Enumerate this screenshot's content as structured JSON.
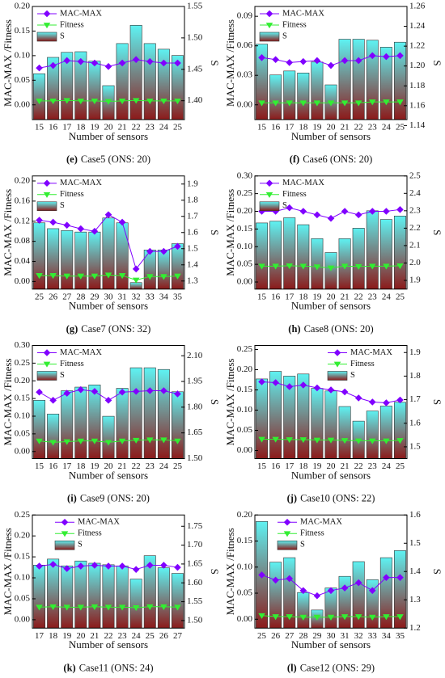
{
  "chart_data": [
    {
      "type": "combo",
      "panel": "(e)",
      "title": "Case5 (ONS: 20)",
      "xlabel": "Number of sensors",
      "ylabel": "MAC-MAX /Fitness",
      "y2label": "S",
      "legend": "upper left",
      "categories": [
        15,
        16,
        17,
        18,
        19,
        20,
        21,
        22,
        23,
        24,
        25
      ],
      "series": [
        {
          "name": "S",
          "type": "bar",
          "axis": "y2",
          "gradient": [
            "#5ef2f2",
            "#8c1a1a"
          ],
          "values": [
            1.443,
            1.469,
            1.477,
            1.478,
            1.463,
            1.424,
            1.491,
            1.52,
            1.491,
            1.482,
            1.472
          ]
        },
        {
          "name": "MAC-MAX",
          "type": "line",
          "color": "#8000ff",
          "marker": "diamond",
          "values": [
            0.075,
            0.08,
            0.09,
            0.088,
            0.085,
            0.078,
            0.085,
            0.092,
            0.088,
            0.085,
            0.085
          ]
        },
        {
          "name": "Fitness",
          "type": "line",
          "color": "#33ee33",
          "marker": "triangle-down",
          "values": [
            0.008,
            0.008,
            0.009,
            0.008,
            0.008,
            0.007,
            0.008,
            0.009,
            0.008,
            0.008,
            0.008
          ]
        }
      ],
      "ylim": [
        -0.03,
        0.2
      ],
      "yticks": [
        {
          "value": 0,
          "label": "0.00"
        },
        0.05,
        {
          "value": 0.1,
          "label": "0.10"
        },
        0.15,
        {
          "value": 0.2,
          "label": "0.20"
        }
      ],
      "y2lim": [
        1.37,
        1.55
      ],
      "y2ticks": [
        {
          "value": 1.4,
          "label": "1.40"
        },
        1.45,
        {
          "value": 1.5,
          "label": "1.50"
        },
        1.55
      ]
    },
    {
      "type": "combo",
      "panel": "(f)",
      "title": "Case6 (ONS: 20)",
      "xlabel": "Number of sensors",
      "ylabel": "MAC-MAX /Fitness",
      "y2label": "S",
      "legend": "upper left",
      "categories": [
        15,
        16,
        17,
        18,
        19,
        20,
        21,
        22,
        23,
        24,
        25
      ],
      "series": [
        {
          "name": "S",
          "type": "bar",
          "axis": "y2",
          "gradient": [
            "#5ef2f2",
            "#8c1a1a"
          ],
          "values": [
            1.222,
            1.191,
            1.195,
            1.193,
            1.204,
            1.181,
            1.227,
            1.227,
            1.226,
            1.219,
            1.224
          ]
        },
        {
          "name": "MAC-MAX",
          "type": "line",
          "color": "#8000ff",
          "marker": "diamond",
          "values": [
            0.048,
            0.046,
            0.043,
            0.044,
            0.045,
            0.04,
            0.045,
            0.045,
            0.05,
            0.049,
            0.05
          ]
        },
        {
          "name": "Fitness",
          "type": "line",
          "color": "#33ee33",
          "marker": "triangle-down",
          "values": [
            0.002,
            0.002,
            0.002,
            0.002,
            0.002,
            0.002,
            0.002,
            0.002,
            0.003,
            0.003,
            0.003
          ]
        }
      ],
      "ylim": [
        -0.015,
        0.1
      ],
      "yticks": [
        {
          "value": 0,
          "label": "0.00"
        },
        0.03,
        0.06,
        0.09
      ],
      "y2lim": [
        1.146,
        1.26
      ],
      "y2ticks": [
        1.14,
        1.16,
        1.18,
        {
          "value": 1.2,
          "label": "1.20"
        },
        1.22,
        1.24,
        1.26
      ]
    },
    {
      "type": "combo",
      "panel": "(g)",
      "title": "Case7 (ONS: 32)",
      "xlabel": "Number of sensors",
      "ylabel": "MAC-MAX /Fitness",
      "y2label": "S",
      "legend": "upper left",
      "categories": [
        25,
        26,
        27,
        28,
        29,
        30,
        31,
        32,
        33,
        34,
        35
      ],
      "series": [
        {
          "name": "S",
          "type": "bar",
          "axis": "y2",
          "gradient": [
            "#5ef2f2",
            "#8c1a1a"
          ],
          "values": [
            1.66,
            1.624,
            1.612,
            1.603,
            1.603,
            1.69,
            1.66,
            1.29,
            1.492,
            1.492,
            1.531
          ]
        },
        {
          "name": "MAC-MAX",
          "type": "line",
          "color": "#8000ff",
          "marker": "diamond",
          "values": [
            0.122,
            0.118,
            0.112,
            0.105,
            0.1,
            0.133,
            0.118,
            0.025,
            0.06,
            0.06,
            0.07
          ]
        },
        {
          "name": "Fitness",
          "type": "line",
          "color": "#33ee33",
          "marker": "triangle-down",
          "values": [
            0.012,
            0.012,
            0.011,
            0.011,
            0.011,
            0.013,
            0.012,
            0.003,
            0.01,
            0.01,
            0.011
          ]
        }
      ],
      "ylim": [
        -0.015,
        0.21
      ],
      "yticks": [
        {
          "value": 0,
          "label": "0.00"
        },
        0.04,
        0.08,
        0.12,
        0.16,
        {
          "value": 0.2,
          "label": "0.20"
        }
      ],
      "y2lim": [
        1.25,
        1.95
      ],
      "y2ticks": [
        1.3,
        1.4,
        1.5,
        1.6,
        1.7,
        1.8,
        1.9
      ]
    },
    {
      "type": "combo",
      "panel": "(h)",
      "title": "Case8 (ONS: 20)",
      "xlabel": "Number of sensors",
      "ylabel": "MAC-MAX /Fitness",
      "y2label": "S",
      "legend": "upper left",
      "categories": [
        15,
        16,
        17,
        18,
        19,
        20,
        21,
        22,
        23,
        24,
        25
      ],
      "series": [
        {
          "name": "S",
          "type": "bar",
          "axis": "y2",
          "gradient": [
            "#5ef2f2",
            "#8c1a1a"
          ],
          "values": [
            2.23,
            2.24,
            2.26,
            2.22,
            2.14,
            2.06,
            2.14,
            2.2,
            2.3,
            2.25,
            2.27
          ]
        },
        {
          "name": "MAC-MAX",
          "type": "line",
          "color": "#8000ff",
          "marker": "diamond",
          "values": [
            0.2,
            0.2,
            0.21,
            0.2,
            0.19,
            0.18,
            0.2,
            0.19,
            0.2,
            0.2,
            0.205
          ]
        },
        {
          "name": "Fitness",
          "type": "line",
          "color": "#33ee33",
          "marker": "triangle-down",
          "values": [
            0.045,
            0.045,
            0.046,
            0.045,
            0.043,
            0.04,
            0.045,
            0.044,
            0.045,
            0.045,
            0.046
          ]
        }
      ],
      "ylim": [
        -0.02,
        0.3
      ],
      "yticks": [
        {
          "value": 0,
          "label": "0.00"
        },
        0.05,
        {
          "value": 0.1,
          "label": "0.10"
        },
        0.15,
        {
          "value": 0.2,
          "label": "0.20"
        },
        0.25,
        {
          "value": 0.3,
          "label": "0.30"
        }
      ],
      "y2lim": [
        1.85,
        2.5
      ],
      "y2ticks": [
        1.9,
        {
          "value": 2,
          "label": "2.0"
        },
        2.1,
        2.2,
        2.3,
        2.4,
        2.5
      ]
    },
    {
      "type": "combo",
      "panel": "(i)",
      "title": "Case9 (ONS: 20)",
      "xlabel": "Number of sensors",
      "ylabel": "MAC-MAX /Fitness",
      "y2label": "S",
      "legend": "upper left",
      "categories": [
        15,
        16,
        17,
        18,
        19,
        20,
        21,
        22,
        23,
        24,
        25
      ],
      "series": [
        {
          "name": "S",
          "type": "bar",
          "axis": "y2",
          "gradient": [
            "#5ef2f2",
            "#8c1a1a"
          ],
          "values": [
            1.84,
            1.76,
            1.896,
            1.917,
            1.93,
            1.747,
            1.91,
            2.03,
            2.03,
            2.02,
            1.89
          ]
        },
        {
          "name": "MAC-MAX",
          "type": "line",
          "color": "#8000ff",
          "marker": "diamond",
          "values": [
            0.168,
            0.145,
            0.165,
            0.175,
            0.17,
            0.145,
            0.168,
            0.17,
            0.172,
            0.172,
            0.163
          ]
        },
        {
          "name": "Fitness",
          "type": "line",
          "color": "#33ee33",
          "marker": "triangle-down",
          "values": [
            0.03,
            0.026,
            0.028,
            0.03,
            0.03,
            0.026,
            0.03,
            0.032,
            0.033,
            0.033,
            0.03
          ]
        }
      ],
      "ylim": [
        -0.02,
        0.3
      ],
      "yticks": [
        {
          "value": 0,
          "label": "0.00"
        },
        0.05,
        {
          "value": 0.1,
          "label": "0.10"
        },
        0.15,
        {
          "value": 0.2,
          "label": "0.20"
        },
        0.25,
        {
          "value": 0.3,
          "label": "0.30"
        }
      ],
      "y2lim": [
        1.5,
        2.16
      ],
      "y2ticks": [
        {
          "value": 1.5,
          "label": "1.50"
        },
        1.65,
        {
          "value": 1.8,
          "label": "1.80"
        },
        1.95,
        {
          "value": 2.1,
          "label": "2.10"
        }
      ]
    },
    {
      "type": "combo",
      "panel": "(j)",
      "title": "Case10 (ONS: 22)",
      "xlabel": "Number of sensors",
      "ylabel": "MAC-MAX /Fitness",
      "y2label": "S",
      "legend": "upper right",
      "categories": [
        15,
        16,
        17,
        18,
        19,
        20,
        21,
        22,
        23,
        24,
        25
      ],
      "series": [
        {
          "name": "S",
          "type": "bar",
          "axis": "y2",
          "gradient": [
            "#5ef2f2",
            "#8c1a1a"
          ],
          "values": [
            1.788,
            1.82,
            1.8,
            1.809,
            1.748,
            1.737,
            1.671,
            1.609,
            1.652,
            1.673,
            1.689
          ]
        },
        {
          "name": "MAC-MAX",
          "type": "line",
          "color": "#8000ff",
          "marker": "diamond",
          "values": [
            0.17,
            0.168,
            0.158,
            0.162,
            0.155,
            0.15,
            0.145,
            0.13,
            0.12,
            0.118,
            0.125
          ]
        },
        {
          "name": "Fitness",
          "type": "line",
          "color": "#33ee33",
          "marker": "triangle-down",
          "values": [
            0.028,
            0.028,
            0.027,
            0.027,
            0.026,
            0.026,
            0.025,
            0.024,
            0.024,
            0.024,
            0.025
          ]
        }
      ],
      "ylim": [
        -0.02,
        0.26
      ],
      "yticks": [
        {
          "value": 0,
          "label": "0.00"
        },
        0.05,
        {
          "value": 0.1,
          "label": "0.10"
        },
        0.15,
        {
          "value": 0.2,
          "label": "0.20"
        },
        0.25
      ],
      "y2lim": [
        1.45,
        1.93
      ],
      "y2ticks": [
        1.5,
        1.6,
        1.7,
        1.8,
        1.9
      ]
    },
    {
      "type": "combo",
      "panel": "(k)",
      "title": "Case11 (ONS: 24)",
      "xlabel": "Number of sensors",
      "ylabel": "MAC-MAX /Fitness",
      "y2label": "S",
      "legend": "upper center",
      "categories": [
        17,
        18,
        19,
        20,
        21,
        22,
        23,
        24,
        25,
        26,
        27
      ],
      "series": [
        {
          "name": "S",
          "type": "bar",
          "axis": "y2",
          "gradient": [
            "#5ef2f2",
            "#8c1a1a"
          ],
          "values": [
            1.647,
            1.663,
            1.645,
            1.658,
            1.652,
            1.648,
            1.645,
            1.61,
            1.672,
            1.64,
            1.625
          ]
        },
        {
          "name": "MAC-MAX",
          "type": "line",
          "color": "#8000ff",
          "marker": "diamond",
          "values": [
            0.128,
            0.132,
            0.122,
            0.128,
            0.13,
            0.128,
            0.128,
            0.12,
            0.13,
            0.13,
            0.125
          ]
        },
        {
          "name": "Fitness",
          "type": "line",
          "color": "#33ee33",
          "marker": "triangle-down",
          "values": [
            0.03,
            0.031,
            0.03,
            0.03,
            0.031,
            0.03,
            0.03,
            0.029,
            0.031,
            0.031,
            0.03
          ]
        }
      ],
      "ylim": [
        -0.02,
        0.25
      ],
      "yticks": [
        {
          "value": 0,
          "label": "0.00"
        },
        0.05,
        {
          "value": 0.1,
          "label": "0.10"
        },
        0.15,
        {
          "value": 0.2,
          "label": "0.20"
        },
        0.25
      ],
      "y2lim": [
        1.48,
        1.78
      ],
      "y2ticks": [
        {
          "value": 1.5,
          "label": "1.50"
        },
        1.55,
        {
          "value": 1.6,
          "label": "1.60"
        },
        1.65,
        {
          "value": 1.7,
          "label": "1.70"
        },
        1.75
      ]
    },
    {
      "type": "combo",
      "panel": "(l)",
      "title": "Case12 (ONS: 29)",
      "xlabel": "Number of sensors",
      "ylabel": "MAC-MAX /Fitness",
      "y2label": "S",
      "legend": "upper center",
      "categories": [
        25,
        26,
        27,
        28,
        29,
        30,
        31,
        32,
        33,
        34,
        35
      ],
      "series": [
        {
          "name": "S",
          "type": "bar",
          "axis": "y2",
          "gradient": [
            "#5ef2f2",
            "#8c1a1a"
          ],
          "values": [
            1.577,
            1.433,
            1.449,
            1.326,
            1.264,
            1.342,
            1.383,
            1.435,
            1.371,
            1.449,
            1.474
          ]
        },
        {
          "name": "MAC-MAX",
          "type": "line",
          "color": "#8000ff",
          "marker": "diamond",
          "values": [
            0.085,
            0.075,
            0.078,
            0.055,
            0.045,
            0.055,
            0.06,
            0.07,
            0.055,
            0.08,
            0.08
          ]
        },
        {
          "name": "Fitness",
          "type": "line",
          "color": "#33ee33",
          "marker": "triangle-down",
          "values": [
            0.007,
            0.005,
            0.005,
            0.004,
            0.004,
            0.004,
            0.005,
            0.005,
            0.004,
            0.005,
            0.005
          ]
        }
      ],
      "ylim": [
        -0.017,
        0.2
      ],
      "yticks": [
        {
          "value": 0,
          "label": "0.00"
        },
        0.05,
        {
          "value": 0.1,
          "label": "0.10"
        },
        0.15,
        {
          "value": 0.2,
          "label": "0.20"
        }
      ],
      "y2lim": [
        1.2,
        1.6
      ],
      "y2ticks": [
        1.2,
        1.3,
        1.4,
        1.5,
        1.6
      ]
    }
  ]
}
